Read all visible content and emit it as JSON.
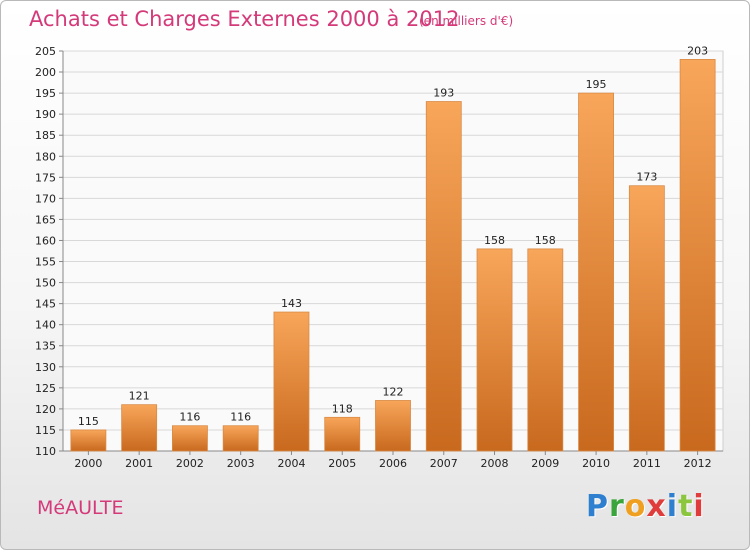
{
  "header": {
    "title": "Achats et Charges Externes 2000 à 2012",
    "subtitle": "(en milliers d'€)"
  },
  "footer": {
    "commune": "MéAULTE",
    "brand_letters": [
      {
        "ch": "P",
        "color": "#2f7fd0"
      },
      {
        "ch": "r",
        "color": "#3aa53a"
      },
      {
        "ch": "o",
        "color": "#f0a020"
      },
      {
        "ch": "x",
        "color": "#e03c3c"
      },
      {
        "ch": "i",
        "color": "#2f7fd0"
      },
      {
        "ch": "t",
        "color": "#8cc63f"
      },
      {
        "ch": "i",
        "color": "#e03c3c"
      }
    ]
  },
  "colors": {
    "bar_top": "#f8a65a",
    "bar_bottom": "#c8691e",
    "title": "#d43a7a",
    "grid": "#d8d8d8"
  },
  "chart_data": {
    "type": "bar",
    "categories": [
      "2000",
      "2001",
      "2002",
      "2003",
      "2004",
      "2005",
      "2006",
      "2007",
      "2008",
      "2009",
      "2010",
      "2011",
      "2012"
    ],
    "values": [
      115,
      121,
      116,
      116,
      143,
      118,
      122,
      193,
      158,
      158,
      195,
      173,
      203
    ],
    "ylim": [
      110,
      205
    ],
    "ytick_step": 5,
    "grid": true,
    "data_labels": true
  }
}
